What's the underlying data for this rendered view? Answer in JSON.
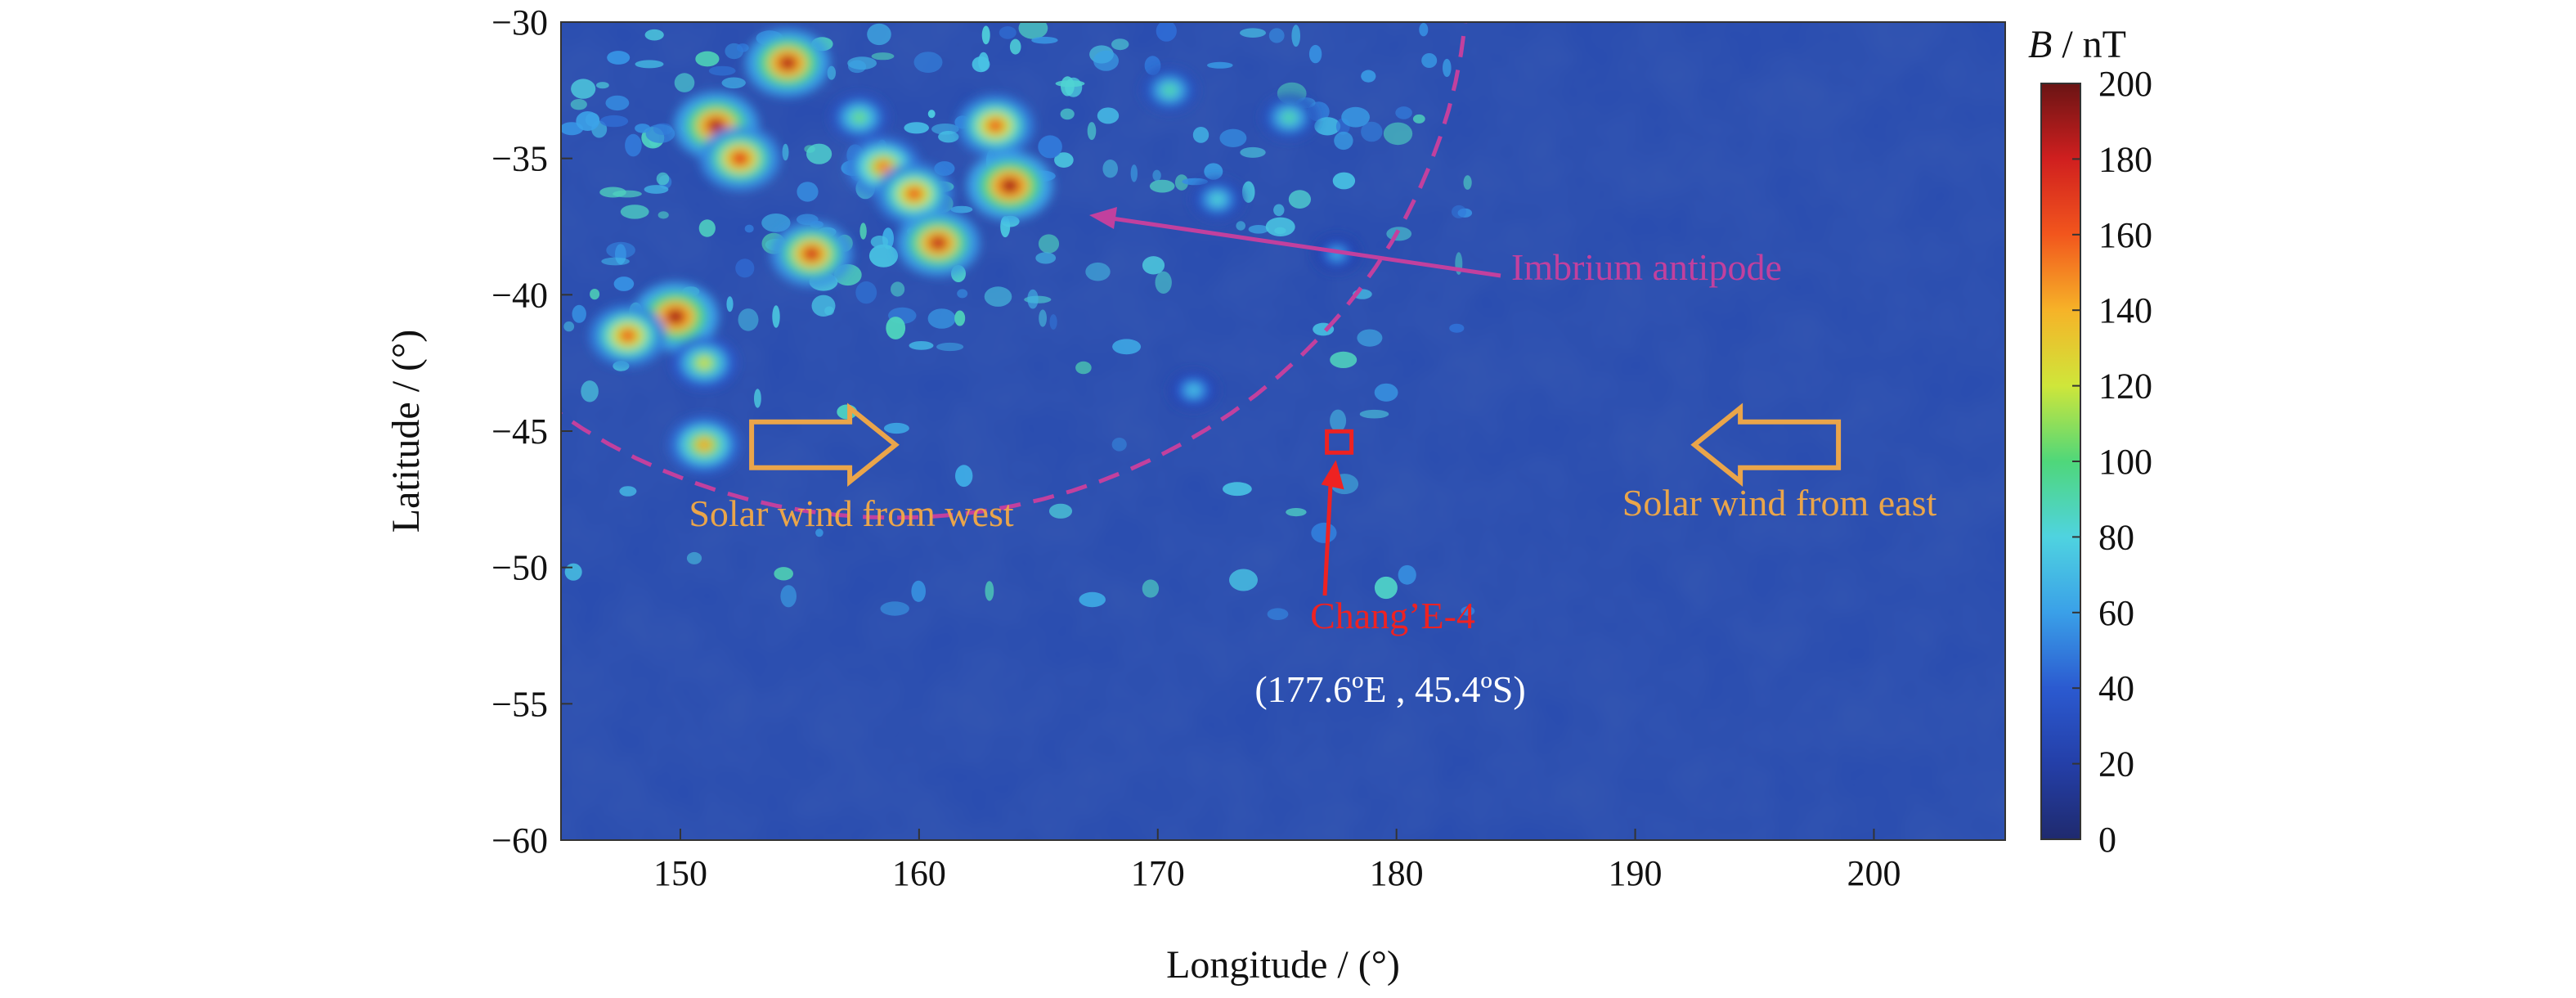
{
  "chart_data": {
    "type": "heatmap",
    "title": "",
    "xlabel": "Longitude / (°)",
    "ylabel": "Latitude / (°)",
    "xlim": [
      145,
      205.5
    ],
    "ylim": [
      -60,
      -30
    ],
    "x_ticks": [
      150,
      160,
      170,
      180,
      190,
      200
    ],
    "y_ticks": [
      -30,
      -35,
      -40,
      -45,
      -50,
      -55,
      -60
    ],
    "colorbar": {
      "label_symbol": "B",
      "label_unit": " / nT",
      "range": [
        0,
        200
      ],
      "ticks": [
        0,
        20,
        40,
        60,
        80,
        100,
        120,
        140,
        160,
        180,
        200
      ],
      "colormap": "jet"
    },
    "background_field_nT": 25,
    "high_field_hotspots": [
      {
        "lon": 154.5,
        "lat": -31.5,
        "B": 195
      },
      {
        "lon": 151.5,
        "lat": -33.8,
        "B": 195
      },
      {
        "lon": 152.5,
        "lat": -35.0,
        "B": 180
      },
      {
        "lon": 163.2,
        "lat": -33.8,
        "B": 170
      },
      {
        "lon": 163.8,
        "lat": -36.0,
        "B": 200
      },
      {
        "lon": 158.5,
        "lat": -35.3,
        "B": 160
      },
      {
        "lon": 159.8,
        "lat": -36.3,
        "B": 170
      },
      {
        "lon": 155.5,
        "lat": -38.5,
        "B": 185
      },
      {
        "lon": 160.8,
        "lat": -38.1,
        "B": 190
      },
      {
        "lon": 149.8,
        "lat": -40.8,
        "B": 200
      },
      {
        "lon": 147.8,
        "lat": -41.5,
        "B": 170
      },
      {
        "lon": 151.0,
        "lat": -42.5,
        "B": 130
      },
      {
        "lon": 151.0,
        "lat": -45.5,
        "B": 150
      },
      {
        "lon": 157.5,
        "lat": -33.5,
        "B": 110
      },
      {
        "lon": 170.5,
        "lat": -32.5,
        "B": 100
      },
      {
        "lon": 175.5,
        "lat": -33.5,
        "B": 100
      },
      {
        "lon": 172.5,
        "lat": -36.5,
        "B": 90
      },
      {
        "lon": 171.5,
        "lat": -43.5,
        "B": 80
      },
      {
        "lon": 177.5,
        "lat": -38.5,
        "B": 70
      }
    ],
    "annotations": {
      "imbrium_label": "Imbrium antipode",
      "antipode_ring": {
        "center_lon": 159,
        "center_lat": -28,
        "radius_lon_deg": 24
      },
      "landing_site": {
        "name": "Chang’E-4",
        "coords": "(177.6ºE , 45.4ºS)",
        "lon": 177.6,
        "lat": -45.4
      },
      "wind_west": {
        "label": "Solar wind from west",
        "lon": 156,
        "lat": -45.5,
        "direction": "east"
      },
      "wind_east": {
        "label": "Solar wind from east",
        "lon": 195.5,
        "lat": -45.5,
        "direction": "west"
      }
    },
    "colors": {
      "annotation_text": "#eaa54a",
      "imbrium": "#c2409e",
      "landing": "#ee2222",
      "coords_text": "#ffffff"
    },
    "grid": false,
    "legend": "colorbar-right"
  }
}
